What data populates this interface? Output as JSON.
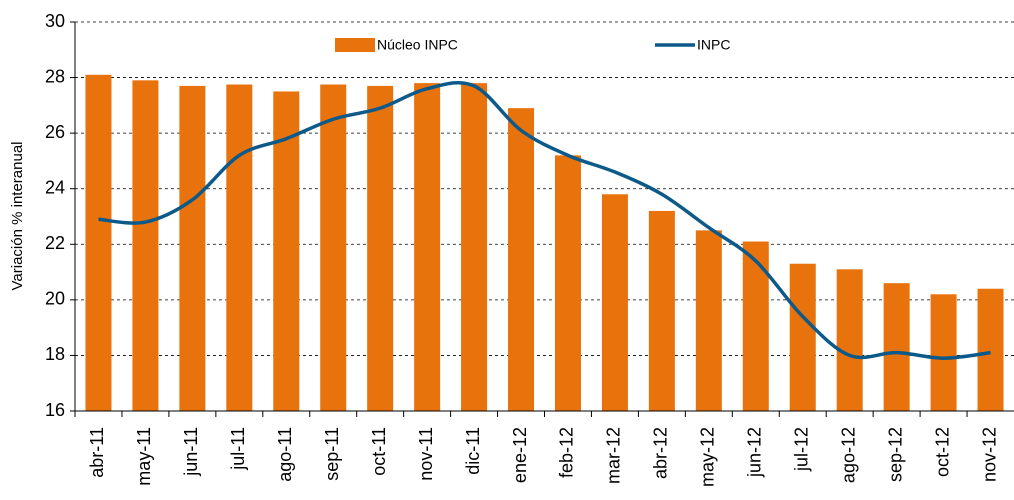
{
  "chart_data": {
    "type": "bar_line",
    "y_axis_label": "Variación % interanual",
    "categories": [
      "abr-11",
      "may-11",
      "jun-11",
      "jul-11",
      "ago-11",
      "sep-11",
      "oct-11",
      "nov-11",
      "dic-11",
      "ene-12",
      "feb-12",
      "mar-12",
      "abr-12",
      "may-12",
      "jun-12",
      "jul-12",
      "ago-12",
      "sep-12",
      "oct-12",
      "nov-12"
    ],
    "series": [
      {
        "name": "Núcleo INPC",
        "type": "bar",
        "color": "#e8720c",
        "values": [
          28.1,
          27.9,
          27.7,
          27.75,
          27.5,
          27.75,
          27.7,
          27.8,
          27.8,
          26.9,
          25.2,
          23.8,
          23.2,
          22.5,
          22.1,
          21.3,
          21.1,
          20.6,
          20.2,
          20.4
        ]
      },
      {
        "name": "INPC",
        "type": "line",
        "color": "#0d5a8a",
        "values": [
          22.9,
          22.8,
          23.6,
          25.2,
          25.8,
          26.5,
          26.9,
          27.6,
          27.7,
          26.1,
          25.2,
          24.6,
          23.8,
          22.6,
          21.4,
          19.4,
          18.0,
          18.1,
          17.9,
          18.1
        ]
      }
    ],
    "ylim": [
      16,
      30
    ],
    "yticks": [
      16,
      18,
      20,
      22,
      24,
      26,
      28,
      30
    ],
    "grid": true
  }
}
